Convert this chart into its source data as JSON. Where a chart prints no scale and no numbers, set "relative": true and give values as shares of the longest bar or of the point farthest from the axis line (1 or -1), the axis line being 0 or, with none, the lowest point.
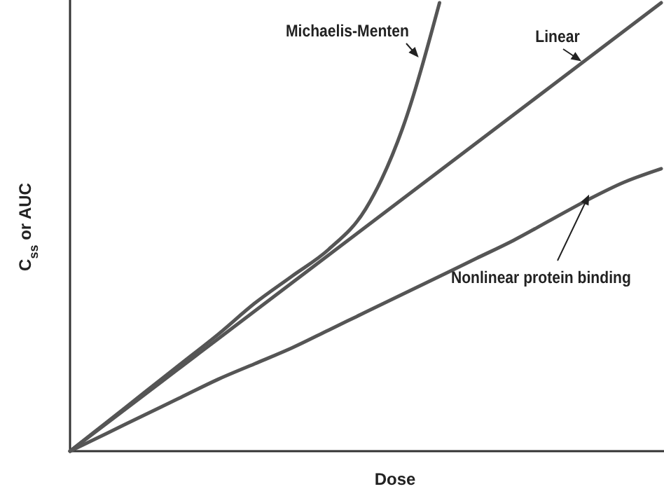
{
  "chart_data": {
    "type": "line",
    "relative": true,
    "xlabel": "Dose",
    "ylabel": "C$_{ss}$ or AUC",
    "marker": "none",
    "legend": false,
    "grid": false,
    "line_style": "solid",
    "categories": [
      null,
      null,
      null,
      null,
      null,
      null,
      null,
      null,
      null,
      null,
      null,
      null,
      null,
      null,
      null,
      null,
      null
    ],
    "series": [
      {
        "name": "Michaelis-Menten",
        "color": "#555555",
        "values": [
          0,
          0.065,
          0.13,
          0.195,
          0.26,
          0.33,
          0.39,
          0.45,
          0.54,
          0.72,
          1.0,
          null,
          null,
          null,
          null,
          null,
          null
        ]
      },
      {
        "name": "Linear",
        "color": "#555555",
        "values": [
          0,
          0.0625,
          0.125,
          0.1875,
          0.25,
          0.3125,
          0.375,
          0.4375,
          0.5,
          0.5625,
          0.625,
          0.6875,
          0.75,
          0.8125,
          0.875,
          0.9375,
          1.0
        ]
      },
      {
        "name": "Nonlinear protein binding",
        "color": "#555555",
        "values": [
          0,
          0.04,
          0.08,
          0.12,
          0.16,
          0.195,
          0.23,
          0.27,
          0.31,
          0.35,
          0.39,
          0.43,
          0.47,
          0.515,
          0.56,
          0.6,
          0.63
        ]
      }
    ]
  }
}
